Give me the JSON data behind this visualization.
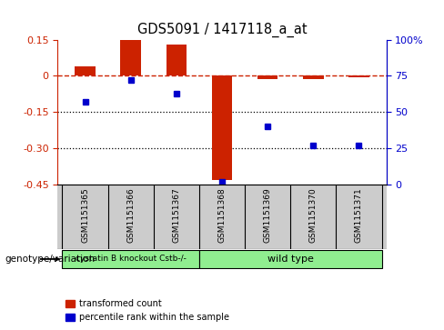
{
  "title": "GDS5091 / 1417118_a_at",
  "samples": [
    "GSM1151365",
    "GSM1151366",
    "GSM1151367",
    "GSM1151368",
    "GSM1151369",
    "GSM1151370",
    "GSM1151371"
  ],
  "transformed_count": [
    0.038,
    0.155,
    0.13,
    -0.43,
    -0.012,
    -0.012,
    -0.005
  ],
  "percentile_rank": [
    57,
    72,
    63,
    2,
    40,
    27,
    27
  ],
  "ylim_left": [
    -0.45,
    0.15
  ],
  "ylim_right": [
    0,
    100
  ],
  "yticks_left": [
    0.15,
    0.0,
    -0.15,
    -0.3,
    -0.45
  ],
  "ytick_labels_left": [
    "0.15",
    "0",
    "-0.15",
    "-0.30",
    "-0.45"
  ],
  "yticks_right": [
    100,
    75,
    50,
    25,
    0
  ],
  "ytick_labels_right": [
    "100%",
    "75",
    "50",
    "25",
    "0"
  ],
  "dotted_lines": [
    -0.15,
    -0.3
  ],
  "group1_indices": [
    0,
    1,
    2
  ],
  "group2_indices": [
    3,
    4,
    5,
    6
  ],
  "group1_label": "cystatin B knockout Cstb-/-",
  "group2_label": "wild type",
  "group_color": "#90EE90",
  "sample_box_color": "#cccccc",
  "bar_color": "#CC2200",
  "dot_color": "#0000CC",
  "legend_label1": "transformed count",
  "legend_label2": "percentile rank within the sample",
  "genotype_label": "genotype/variation",
  "bar_width": 0.45
}
